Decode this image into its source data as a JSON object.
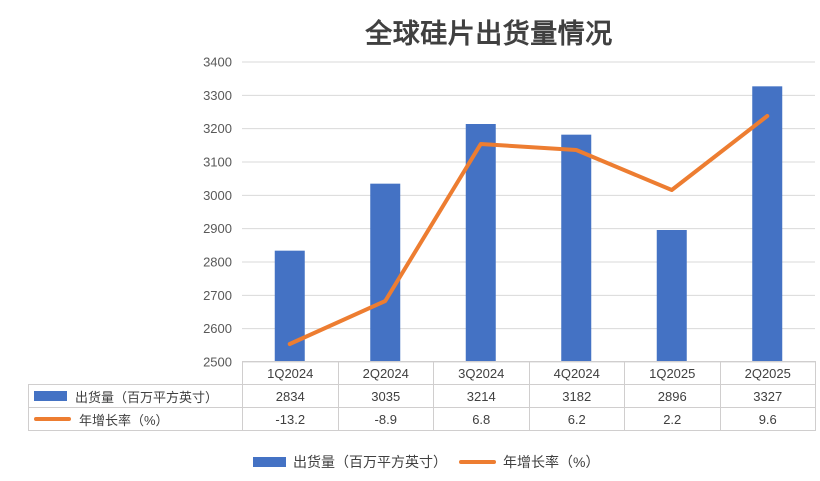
{
  "chart": {
    "title": "全球硅片出货量情况"
  },
  "chart_data": {
    "type": "combo-bar-line",
    "title": "全球硅片出货量情况",
    "categories": [
      "1Q2024",
      "2Q2024",
      "3Q2024",
      "4Q2024",
      "1Q2025",
      "2Q2025"
    ],
    "series": [
      {
        "name": "出货量（百万平方英寸）",
        "type": "bar",
        "axis": "primary",
        "color": "#4472C4",
        "values": [
          2834,
          3035,
          3214,
          3182,
          2896,
          3327
        ]
      },
      {
        "name": "年增长率（%）",
        "type": "line",
        "axis": "secondary",
        "color": "#ED7D31",
        "values": [
          -13.2,
          -8.9,
          6.8,
          6.2,
          2.2,
          9.6
        ]
      }
    ],
    "xlabel": "",
    "ylabel": "",
    "primary_ylim": [
      2500,
      3400
    ],
    "primary_ytick_step": 100,
    "secondary_ylim": [
      -15,
      15
    ],
    "secondary_axis_visible": false,
    "grid": true,
    "legend_position": "bottom",
    "data_table_shown": true
  },
  "colors": {
    "bar": "#4472C4",
    "line": "#ED7D31",
    "gridline": "#D9D9D9",
    "axis_text": "#595959",
    "table_text": "#404040",
    "table_border": "#D0CECE",
    "title_text": "#404040"
  }
}
